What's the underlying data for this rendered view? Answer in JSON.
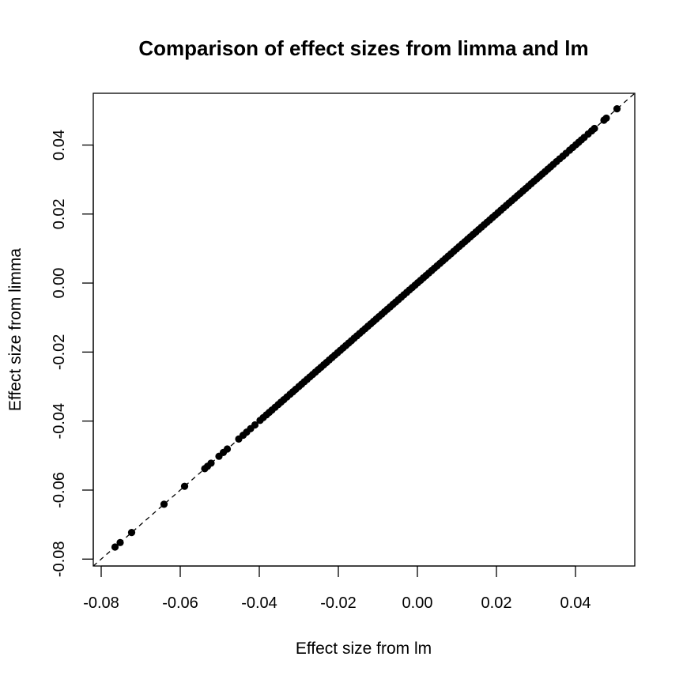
{
  "chart_data": {
    "type": "scatter",
    "title": "Comparison of effect sizes from limma and lm",
    "xlabel": "Effect size from lm",
    "ylabel": "Effect size from limma",
    "xlim": [
      -0.082,
      0.055
    ],
    "ylim": [
      -0.082,
      0.055
    ],
    "x_ticks": [
      -0.08,
      -0.06,
      -0.04,
      -0.02,
      0.0,
      0.02,
      0.04
    ],
    "x_tick_labels": [
      "-0.08",
      "-0.06",
      "-0.04",
      "-0.02",
      "0.00",
      "0.02",
      "0.04"
    ],
    "y_ticks": [
      -0.08,
      -0.06,
      -0.04,
      -0.02,
      0.0,
      0.02,
      0.04
    ],
    "y_tick_labels": [
      "-0.08",
      "-0.06",
      "-0.04",
      "-0.02",
      "0.00",
      "0.02",
      "0.04"
    ],
    "grid": false,
    "reference_line": {
      "type": "identity",
      "style": "dashed",
      "color": "#000000"
    },
    "point_color": "#000000",
    "series": [
      {
        "x": [
          -0.0765,
          -0.0752,
          -0.0723,
          -0.0641,
          -0.0589,
          -0.0538,
          -0.0531,
          -0.0522,
          -0.0502,
          -0.0491,
          -0.0481,
          -0.0452,
          -0.0441,
          -0.0432,
          -0.0422,
          -0.0411,
          -0.0398,
          -0.039,
          -0.0382,
          -0.0375,
          -0.0368,
          -0.036,
          -0.0352,
          -0.0345,
          -0.0338,
          -0.033,
          -0.0322,
          -0.0315,
          -0.0308,
          -0.03,
          -0.0293,
          -0.0286,
          -0.0279,
          -0.0272,
          -0.0265,
          -0.0258,
          -0.0251,
          -0.0244,
          -0.0237,
          -0.023,
          -0.0223,
          -0.0216,
          -0.0209,
          -0.0202,
          -0.0195,
          -0.0188,
          -0.0181,
          -0.0174,
          -0.0167,
          -0.016,
          -0.0153,
          -0.0146,
          -0.0139,
          -0.0132,
          -0.0125,
          -0.0118,
          -0.0111,
          -0.0104,
          -0.0097,
          -0.009,
          -0.0083,
          -0.0076,
          -0.0069,
          -0.0062,
          -0.0055,
          -0.0048,
          -0.0041,
          -0.0034,
          -0.0027,
          -0.002,
          -0.0013,
          -0.0006,
          0.0001,
          0.0008,
          0.0015,
          0.0022,
          0.0029,
          0.0036,
          0.0043,
          0.005,
          0.0057,
          0.0064,
          0.0071,
          0.0078,
          0.0085,
          0.0092,
          0.0099,
          0.0106,
          0.0113,
          0.012,
          0.0127,
          0.0134,
          0.0141,
          0.0148,
          0.0155,
          0.0162,
          0.0169,
          0.0176,
          0.0183,
          0.019,
          0.0197,
          0.0204,
          0.0211,
          0.0218,
          0.0225,
          0.0232,
          0.0239,
          0.0246,
          0.0253,
          0.026,
          0.0267,
          0.0274,
          0.0281,
          0.0288,
          0.0295,
          0.0302,
          0.0309,
          0.0316,
          0.0323,
          0.033,
          0.0337,
          0.0344,
          0.0352,
          0.036,
          0.0368,
          0.0376,
          0.0385,
          0.0393,
          0.0401,
          0.0408,
          0.0415,
          0.0422,
          0.0432,
          0.0441,
          0.0448,
          0.0472,
          0.0478,
          0.0505
        ],
        "y": [
          -0.0765,
          -0.0752,
          -0.0723,
          -0.0641,
          -0.0589,
          -0.0538,
          -0.0531,
          -0.0522,
          -0.0502,
          -0.0491,
          -0.0481,
          -0.0452,
          -0.0441,
          -0.0432,
          -0.0422,
          -0.0411,
          -0.0398,
          -0.039,
          -0.0382,
          -0.0375,
          -0.0368,
          -0.036,
          -0.0352,
          -0.0345,
          -0.0338,
          -0.033,
          -0.0322,
          -0.0315,
          -0.0308,
          -0.03,
          -0.0293,
          -0.0286,
          -0.0279,
          -0.0272,
          -0.0265,
          -0.0258,
          -0.0251,
          -0.0244,
          -0.0237,
          -0.023,
          -0.0223,
          -0.0216,
          -0.0209,
          -0.0202,
          -0.0195,
          -0.0188,
          -0.0181,
          -0.0174,
          -0.0167,
          -0.016,
          -0.0153,
          -0.0146,
          -0.0139,
          -0.0132,
          -0.0125,
          -0.0118,
          -0.0111,
          -0.0104,
          -0.0097,
          -0.009,
          -0.0083,
          -0.0076,
          -0.0069,
          -0.0062,
          -0.0055,
          -0.0048,
          -0.0041,
          -0.0034,
          -0.0027,
          -0.002,
          -0.0013,
          -0.0006,
          0.0001,
          0.0008,
          0.0015,
          0.0022,
          0.0029,
          0.0036,
          0.0043,
          0.005,
          0.0057,
          0.0064,
          0.0071,
          0.0078,
          0.0085,
          0.0092,
          0.0099,
          0.0106,
          0.0113,
          0.012,
          0.0127,
          0.0134,
          0.0141,
          0.0148,
          0.0155,
          0.0162,
          0.0169,
          0.0176,
          0.0183,
          0.019,
          0.0197,
          0.0204,
          0.0211,
          0.0218,
          0.0225,
          0.0232,
          0.0239,
          0.0246,
          0.0253,
          0.026,
          0.0267,
          0.0274,
          0.0281,
          0.0288,
          0.0295,
          0.0302,
          0.0309,
          0.0316,
          0.0323,
          0.033,
          0.0337,
          0.0344,
          0.0352,
          0.036,
          0.0368,
          0.0376,
          0.0385,
          0.0393,
          0.0401,
          0.0408,
          0.0415,
          0.0422,
          0.0432,
          0.0441,
          0.0448,
          0.0472,
          0.0478,
          0.0505
        ]
      }
    ]
  }
}
